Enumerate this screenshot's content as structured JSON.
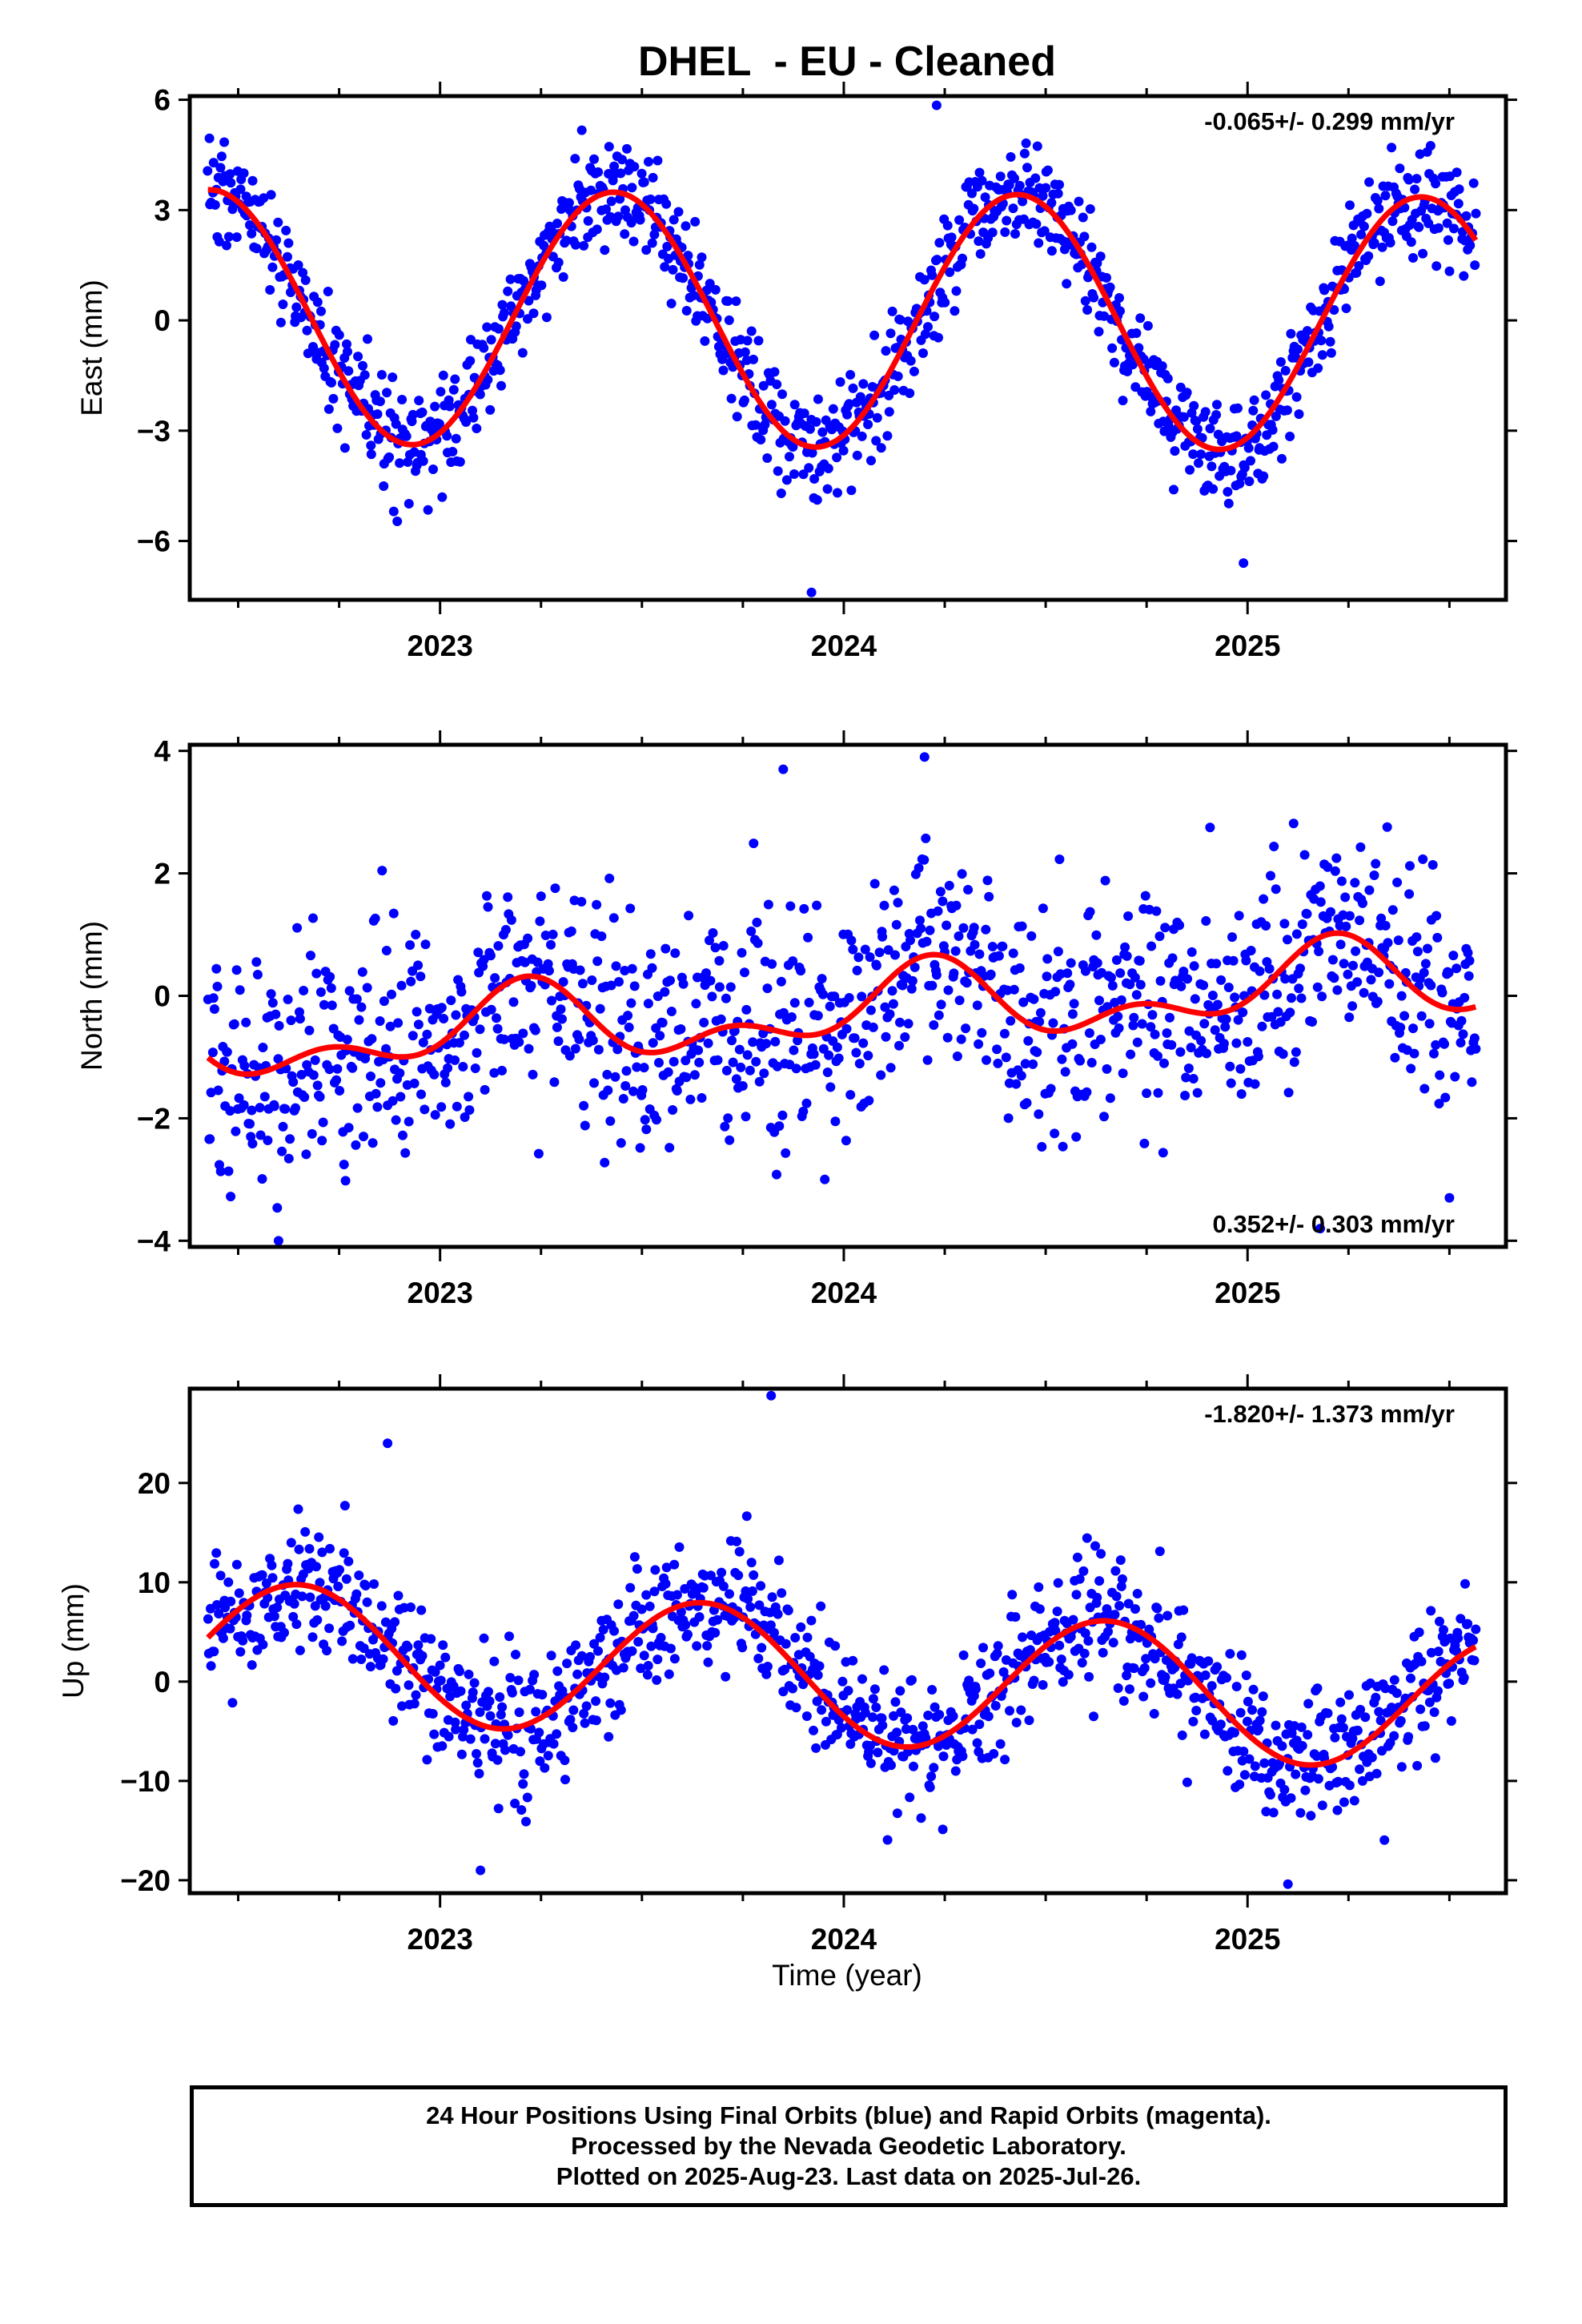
{
  "title": "DHEL  - EU - Cleaned",
  "x_axis_label": "Time (year)",
  "footer": {
    "line1": "24 Hour Positions Using Final Orbits (blue) and Rapid Orbits (magenta).",
    "line2": "Processed by the Nevada Geodetic Laboratory.",
    "line3": "Plotted on 2025-Aug-23. Last data on 2025-Jul-26."
  },
  "colors": {
    "final_orbit_points": "#0000ff",
    "fit_curve": "#ff0000",
    "frame": "#000000"
  },
  "chart_data": [
    {
      "type": "scatter",
      "name": "east",
      "ylabel": "East (mm)",
      "xlim": [
        2022.38,
        2025.64
      ],
      "ylim": [
        -7.6,
        6.1
      ],
      "yticks": [
        -6,
        -3,
        0,
        3,
        6
      ],
      "xticks": [
        2023,
        2024,
        2025
      ],
      "rate_label": "-0.065+/- 0.299 mm/yr",
      "rate_label_position": "top-right",
      "fit": {
        "offset": 0.0,
        "amp1": 3.45,
        "phase1": 2023.18,
        "amp2": 0.0,
        "phase2": 2023.0,
        "trend": -0.065
      },
      "noise_sd": 0.75,
      "x_start": 2022.425,
      "x_end": 2025.565,
      "n_points": 1100,
      "outliers": [
        {
          "x": 2023.92,
          "y": -7.4
        },
        {
          "x": 2024.23,
          "y": 5.85
        },
        {
          "x": 2024.99,
          "y": -6.6
        }
      ]
    },
    {
      "type": "scatter",
      "name": "north",
      "ylabel": "North (mm)",
      "xlim": [
        2022.38,
        2025.64
      ],
      "ylim": [
        -4.1,
        4.1
      ],
      "yticks": [
        -4,
        -2,
        0,
        2,
        4
      ],
      "xticks": [
        2023,
        2024,
        2025
      ],
      "rate_label": "0.352+/- 0.303 mm/yr",
      "rate_label_position": "bottom-right",
      "fit": {
        "offset": -0.25,
        "amp1": 0.5,
        "phase1": 2022.95,
        "amp2": 0.35,
        "phase2": 2023.1,
        "trend": 0.352
      },
      "noise_sd": 0.95,
      "x_start": 2022.425,
      "x_end": 2025.565,
      "n_points": 1100,
      "outliers": [
        {
          "x": 2024.2,
          "y": 3.9
        },
        {
          "x": 2023.85,
          "y": 3.7
        },
        {
          "x": 2022.6,
          "y": -4.0
        },
        {
          "x": 2025.5,
          "y": -3.3
        },
        {
          "x": 2025.18,
          "y": -3.8
        }
      ]
    },
    {
      "type": "scatter",
      "name": "up",
      "ylabel": "Up (mm)",
      "xlim": [
        2022.38,
        2025.64
      ],
      "ylim": [
        -21.3,
        29.5
      ],
      "yticks": [
        -20,
        -10,
        0,
        10,
        20
      ],
      "xticks": [
        2023,
        2024,
        2025
      ],
      "rate_label": "-1.820+/- 1.373 mm/yr",
      "rate_label_position": "top-right",
      "fit": {
        "offset": 0.5,
        "amp1": 6.8,
        "phase1": 2022.4,
        "amp2": 0.0,
        "phase2": 2023.0,
        "trend": -1.82
      },
      "noise_sd": 3.3,
      "x_start": 2022.425,
      "x_end": 2025.565,
      "n_points": 1100,
      "outliers": [
        {
          "x": 2023.82,
          "y": 28.8
        },
        {
          "x": 2022.87,
          "y": 24.0
        },
        {
          "x": 2023.1,
          "y": -19.0
        },
        {
          "x": 2025.1,
          "y": -20.4
        }
      ]
    }
  ]
}
